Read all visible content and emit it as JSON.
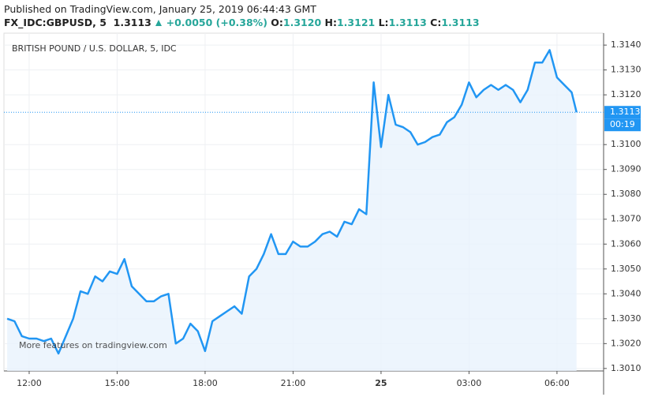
{
  "header": {
    "published": "Published on TradingView.com, January 25, 2019 06:44:43 GMT",
    "symbol": "FX_IDC:GBPUSD, 5",
    "last": "1.3113",
    "change": "+0.0050 (+0.38%)",
    "ohlc": [
      {
        "label": "O:",
        "value": "1.3120"
      },
      {
        "label": "H:",
        "value": "1.3121"
      },
      {
        "label": "L:",
        "value": "1.3113"
      },
      {
        "label": "C:",
        "value": "1.3113"
      }
    ]
  },
  "chart_data": {
    "type": "line",
    "title": "BRITISH POUND / U.S. DOLLAR, 5, IDC",
    "watermark": "More features on tradingview.com",
    "color": "#2196f3",
    "area_fill": "#e8f2fd",
    "grid": true,
    "x": [
      11.25,
      11.5,
      11.75,
      12,
      12.25,
      12.5,
      12.75,
      13,
      13.25,
      13.5,
      13.75,
      14,
      14.25,
      14.5,
      14.75,
      15,
      15.25,
      15.5,
      15.75,
      16,
      16.25,
      16.5,
      16.75,
      17,
      17.25,
      17.5,
      17.75,
      18,
      18.25,
      18.5,
      18.75,
      19,
      19.25,
      19.5,
      19.75,
      20,
      20.25,
      20.5,
      20.75,
      21,
      21.25,
      21.5,
      21.75,
      22,
      22.25,
      22.5,
      22.75,
      23,
      23.25,
      23.5,
      23.75,
      24,
      24.25,
      24.5,
      24.75,
      25,
      25.25,
      25.5,
      25.75,
      26,
      26.25,
      26.5,
      26.75,
      27,
      27.25,
      27.5,
      27.75,
      28,
      28.25,
      28.5,
      28.75,
      29,
      29.25,
      29.5,
      29.75,
      30,
      30.25,
      30.5,
      30.6667
    ],
    "values": [
      1.303,
      1.3029,
      1.3023,
      1.3022,
      1.3022,
      1.3021,
      1.3022,
      1.3016,
      1.3023,
      1.303,
      1.3041,
      1.304,
      1.3047,
      1.3045,
      1.3049,
      1.3048,
      1.3054,
      1.3043,
      1.304,
      1.3037,
      1.3037,
      1.3039,
      1.304,
      1.302,
      1.3022,
      1.3028,
      1.3025,
      1.3017,
      1.3029,
      1.3031,
      1.3033,
      1.3035,
      1.3032,
      1.3047,
      1.305,
      1.3056,
      1.3064,
      1.3056,
      1.3056,
      1.3061,
      1.3059,
      1.3059,
      1.3061,
      1.3064,
      1.3065,
      1.3063,
      1.3069,
      1.3068,
      1.3074,
      1.3072,
      1.3125,
      1.3099,
      1.312,
      1.3108,
      1.3107,
      1.3105,
      1.31,
      1.3101,
      1.3103,
      1.3104,
      1.3109,
      1.3111,
      1.3116,
      1.3125,
      1.3119,
      1.3122,
      1.3124,
      1.3122,
      1.3124,
      1.3122,
      1.3117,
      1.3122,
      1.3133,
      1.3133,
      1.3138,
      1.3127,
      1.3124,
      1.3121,
      1.3113
    ],
    "xlim": [
      11.14,
      31.59
    ],
    "xticks": [
      {
        "value": 12,
        "label": "12:00"
      },
      {
        "value": 15,
        "label": "15:00"
      },
      {
        "value": 18,
        "label": "18:00"
      },
      {
        "value": 21,
        "label": "21:00"
      },
      {
        "value": 24,
        "label": "25"
      },
      {
        "value": 27,
        "label": "03:00"
      },
      {
        "value": 30,
        "label": "06:00"
      }
    ],
    "ylim": [
      1.3009,
      1.31448
    ],
    "yticks": [
      {
        "value": 1.314,
        "label": "1.3140"
      },
      {
        "value": 1.313,
        "label": "1.3130"
      },
      {
        "value": 1.312,
        "label": "1.3120"
      },
      {
        "value": 1.31,
        "label": "1.3100"
      },
      {
        "value": 1.309,
        "label": "1.3090"
      },
      {
        "value": 1.308,
        "label": "1.3080"
      },
      {
        "value": 1.307,
        "label": "1.3070"
      },
      {
        "value": 1.306,
        "label": "1.3060"
      },
      {
        "value": 1.305,
        "label": "1.3050"
      },
      {
        "value": 1.304,
        "label": "1.3040"
      },
      {
        "value": 1.303,
        "label": "1.3030"
      },
      {
        "value": 1.302,
        "label": "1.3020"
      },
      {
        "value": 1.301,
        "label": "1.3010"
      }
    ],
    "last_price": {
      "value": 1.3113,
      "label": "1.3113"
    },
    "countdown": "00:19"
  }
}
